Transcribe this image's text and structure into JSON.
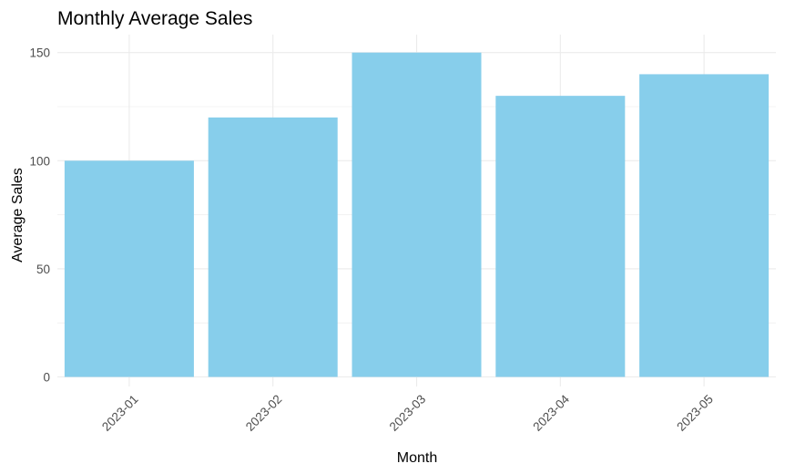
{
  "chart_data": {
    "type": "bar",
    "title": "Monthly Average Sales",
    "xlabel": "Month",
    "ylabel": "Average Sales",
    "categories": [
      "2023-01",
      "2023-02",
      "2023-03",
      "2023-04",
      "2023-05"
    ],
    "values": [
      100,
      120,
      150,
      130,
      140
    ],
    "ylim": [
      0,
      158
    ],
    "yticks": [
      0,
      50,
      100,
      150
    ],
    "ytick_labels": [
      "0",
      "50",
      "100",
      "150"
    ],
    "grid": true,
    "legend": "none",
    "bar_color": "#87CEEB",
    "grid_color": "#ebebeb",
    "tick_label_color": "#4d4d4d"
  }
}
